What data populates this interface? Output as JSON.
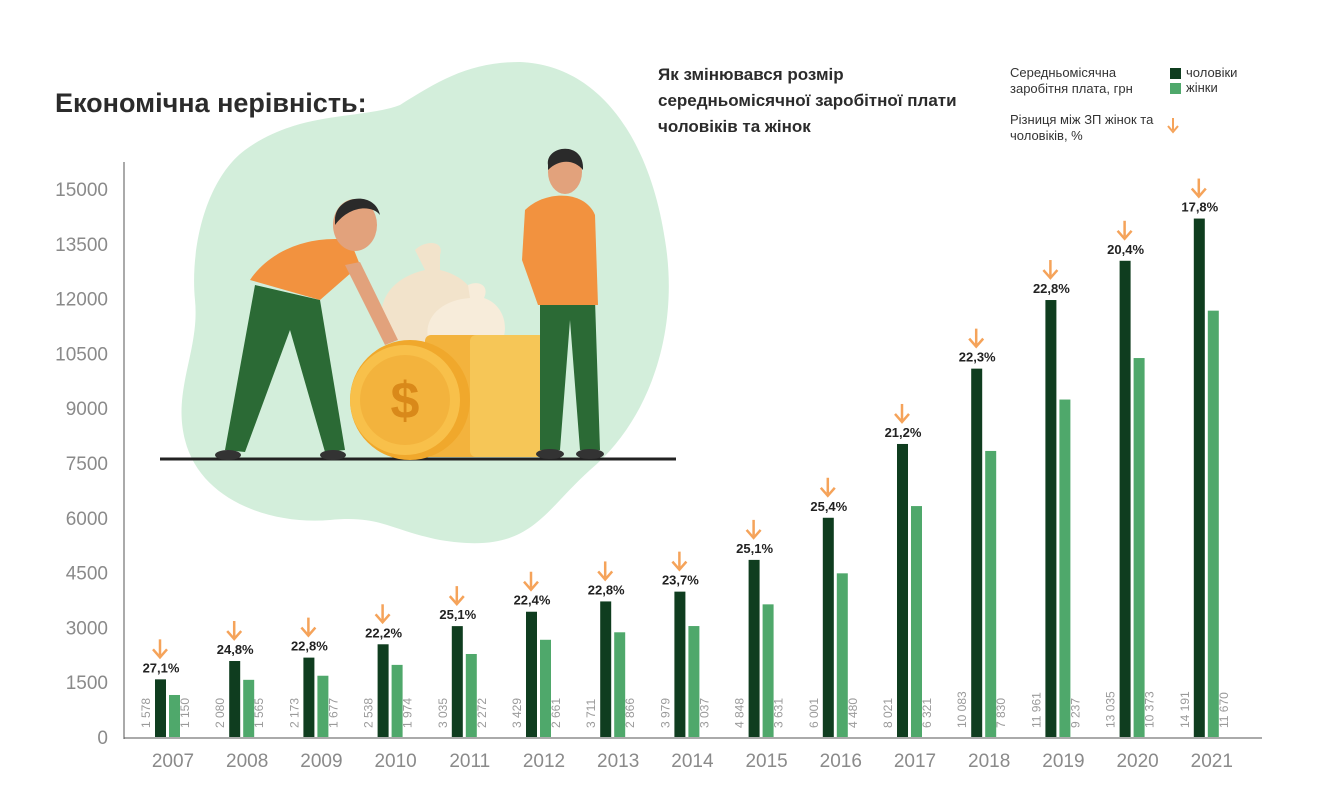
{
  "headline": "Економічна нерівність:",
  "subtitle": "Як змінювався розмір середньомісячної заробітної плати чоловіків та жінок",
  "legend": {
    "salary_title": "Середньомісячна заробітня плата, грн",
    "men": "чоловіки",
    "women": "жінки",
    "gap_title": "Різниця між ЗП жінок та чоловіків, %"
  },
  "colors": {
    "men": "#0f3d1f",
    "women": "#4fa86b",
    "arrow": "#f5a35a",
    "axis_text": "#8a8a8a",
    "blob": "#d3eedb"
  },
  "chart_data": {
    "type": "bar",
    "categories": [
      "2007",
      "2008",
      "2009",
      "2010",
      "2011",
      "2012",
      "2013",
      "2014",
      "2015",
      "2016",
      "2017",
      "2018",
      "2019",
      "2020",
      "2021"
    ],
    "series": [
      {
        "name": "чоловіки",
        "values": [
          1578,
          2080,
          2173,
          2538,
          3035,
          3429,
          3711,
          3979,
          4848,
          6001,
          8021,
          10083,
          11961,
          13035,
          14191
        ]
      },
      {
        "name": "жінки",
        "values": [
          1150,
          1565,
          1677,
          1974,
          2272,
          2661,
          2866,
          3037,
          3631,
          4480,
          6321,
          7830,
          9237,
          10373,
          11670
        ]
      }
    ],
    "value_labels": {
      "men": [
        "1 578",
        "2 080",
        "2 173",
        "2 538",
        "3 035",
        "3 429",
        "3 711",
        "3 979",
        "4 848",
        "6 001",
        "8 021",
        "10 083",
        "11 961",
        "13 035",
        "14 191"
      ],
      "women": [
        "1 150",
        "1 565",
        "1 677",
        "1 974",
        "2 272",
        "2 661",
        "2 866",
        "3 037",
        "3 631",
        "4 480",
        "6 321",
        "7 830",
        "9 237",
        "10 373",
        "11 670"
      ]
    },
    "gap_labels": [
      "27,1%",
      "24,8%",
      "22,8%",
      "22,2%",
      "25,1%",
      "22,4%",
      "22,8%",
      "23,7%",
      "25,1%",
      "25,4%",
      "21,2%",
      "22,3%",
      "22,8%",
      "20,4%",
      "17,8%"
    ],
    "y_ticks": [
      "0",
      "1500",
      "3000",
      "4500",
      "6000",
      "7500",
      "9000",
      "10500",
      "12000",
      "13500",
      "15000"
    ],
    "ylim": [
      0,
      15000
    ]
  }
}
